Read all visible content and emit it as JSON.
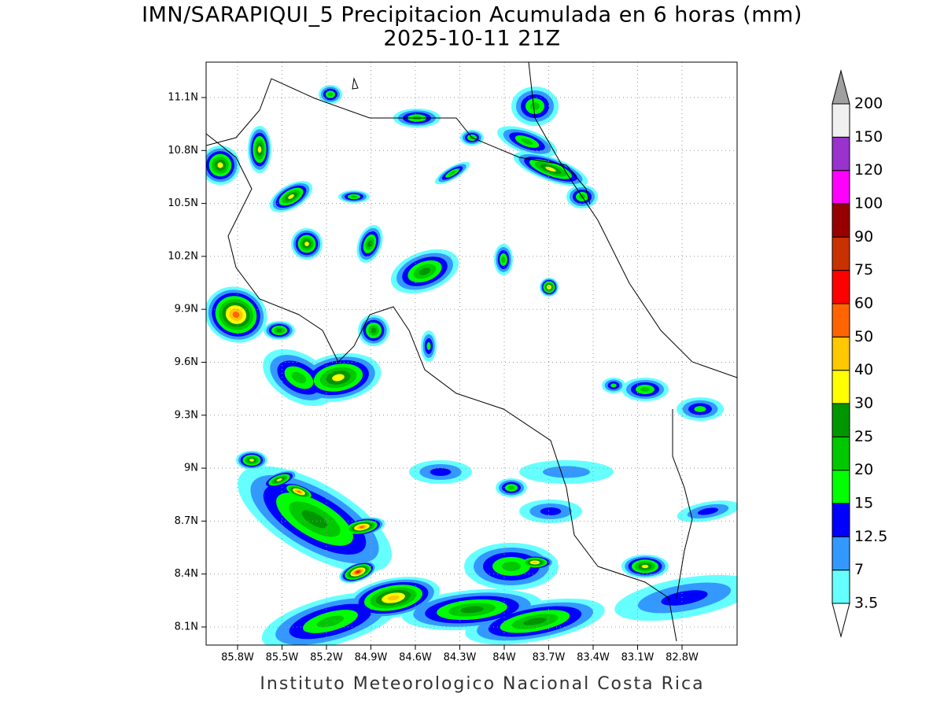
{
  "title": [
    "IMN/SARAPIQUI_5 Precipitacion Acumulada en 6 horas (mm)",
    "2025-10-11 21Z"
  ],
  "map": {
    "lat_labels": [
      "11.1N",
      "10.8N",
      "10.5N",
      "10.2N",
      "9.9N",
      "9.6N",
      "9.3N",
      "9N",
      "8.7N",
      "8.4N",
      "8.1N"
    ],
    "lon_labels": [
      "85.8W",
      "85.5W",
      "85.2W",
      "84.9W",
      "84.6W",
      "84.3W",
      "84W",
      "83.7W",
      "83.4W",
      "83.1W",
      "82.8W"
    ]
  },
  "colorbar": {
    "levels": [
      3.5,
      7,
      12.5,
      15,
      20,
      25,
      30,
      40,
      50,
      60,
      75,
      90,
      100,
      120,
      150,
      200
    ],
    "colors": [
      "#ffffff",
      "#66ffff",
      "#3399ff",
      "#0000ff",
      "#00ff00",
      "#00c800",
      "#009600",
      "#ffff00",
      "#ffc800",
      "#ff6400",
      "#ff0000",
      "#c83200",
      "#960000",
      "#ff00ff",
      "#9933cc",
      "#f0f0f0",
      "#a0a0a0"
    ]
  },
  "footer": "Instituto Meteorologico Nacional Costa Rica"
}
